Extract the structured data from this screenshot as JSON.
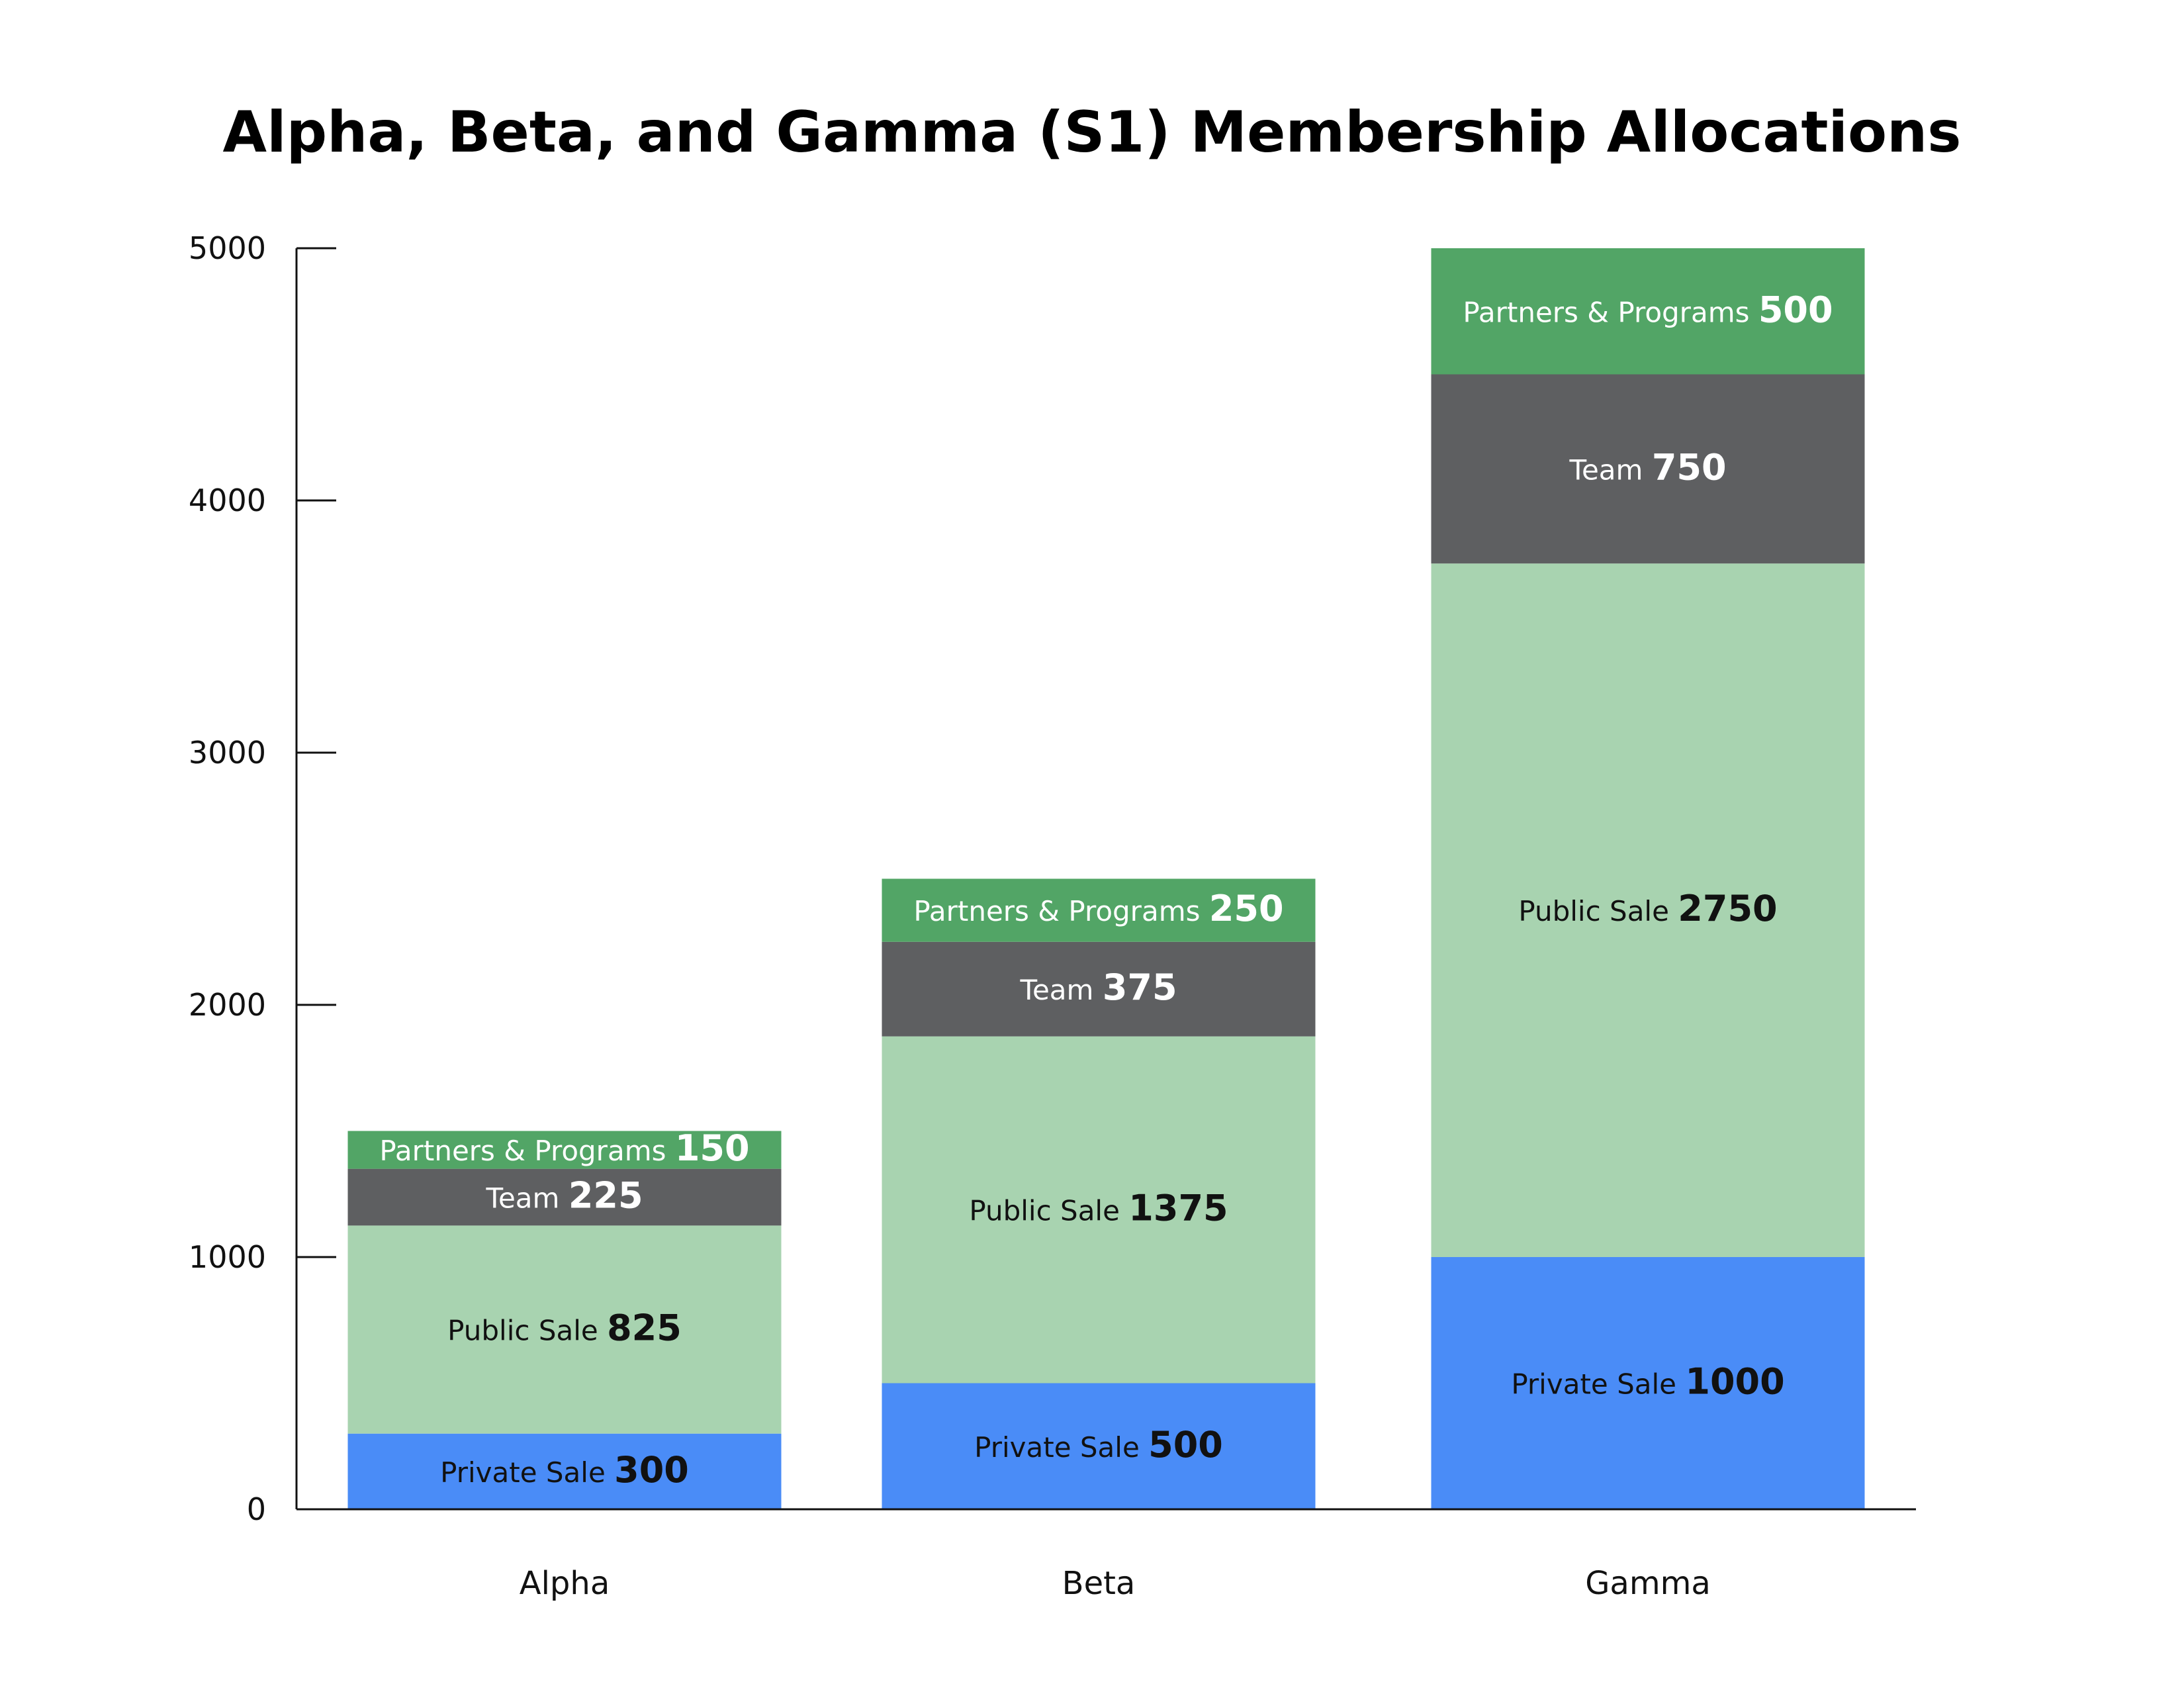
{
  "chart_data": {
    "type": "bar",
    "stacked": true,
    "title": "Alpha, Beta, and Gamma (S1) Membership Allocations",
    "xlabel": "",
    "ylabel": "",
    "ylim": [
      0,
      5000
    ],
    "yticks": [
      0,
      1000,
      2000,
      3000,
      4000,
      5000
    ],
    "categories": [
      "Alpha",
      "Beta",
      "Gamma"
    ],
    "series": [
      {
        "name": "Private Sale",
        "values": [
          300,
          500,
          1000
        ],
        "color": "#4a8cf7",
        "text_color": "#111111"
      },
      {
        "name": "Public Sale",
        "values": [
          825,
          1375,
          2750
        ],
        "color": "#a8d3b0",
        "text_color": "#111111"
      },
      {
        "name": "Team",
        "values": [
          225,
          375,
          750
        ],
        "color": "#5e5f61",
        "text_color": "#ffffff"
      },
      {
        "name": "Partners & Programs",
        "values": [
          150,
          250,
          500
        ],
        "color": "#52a566",
        "text_color": "#ffffff"
      }
    ],
    "grid": false,
    "legend": "none"
  }
}
